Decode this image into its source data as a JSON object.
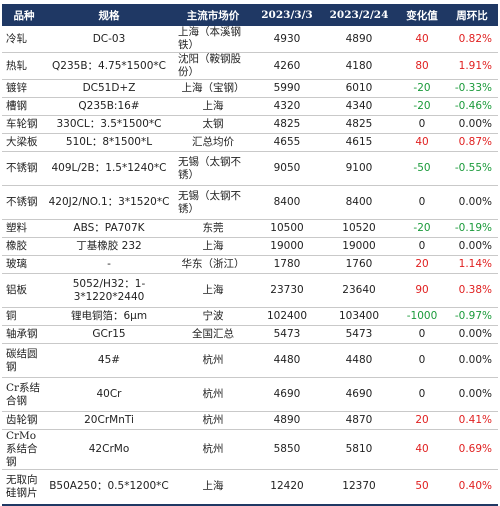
{
  "header": {
    "product": "品种",
    "spec": "规格",
    "market": "主流市场价",
    "date1": "2023/3/3",
    "date2": "2023/2/24",
    "change": "变化值",
    "wow": "周环比"
  },
  "rows": [
    {
      "product": "冷轧",
      "spec": "DC-03",
      "market": "上海（本溪钢铁）",
      "price1": "4930",
      "price2": "4890",
      "change": "40",
      "pct": "0.82%",
      "dir": "pos"
    },
    {
      "product": "热轧",
      "spec": "Q235B：4.75*1500*C",
      "market": "沈阳（鞍钢股份）",
      "price1": "4260",
      "price2": "4180",
      "change": "80",
      "pct": "1.91%",
      "dir": "pos"
    },
    {
      "product": "镀锌",
      "spec": "DC51D+Z",
      "market": "上海（宝钢）",
      "price1": "5990",
      "price2": "6010",
      "change": "-20",
      "pct": "-0.33%",
      "dir": "neg"
    },
    {
      "product": "槽钢",
      "spec": "Q235B:16#",
      "market": "上海",
      "price1": "4320",
      "price2": "4340",
      "change": "-20",
      "pct": "-0.46%",
      "dir": "neg"
    },
    {
      "product": "车轮钢",
      "spec": "330CL：3.5*1500*C",
      "market": "太钢",
      "price1": "4825",
      "price2": "4825",
      "change": "0",
      "pct": "0.00%",
      "dir": "zero"
    },
    {
      "product": "大梁板",
      "spec": "510L：8*1500*L",
      "market": "汇总均价",
      "price1": "4655",
      "price2": "4615",
      "change": "40",
      "pct": "0.87%",
      "dir": "pos"
    },
    {
      "product": "不锈钢",
      "spec": "409L/2B：1.5*1240*C",
      "market": "无锡（太钢不锈）",
      "price1": "9050",
      "price2": "9100",
      "change": "-50",
      "pct": "-0.55%",
      "dir": "neg"
    },
    {
      "product": "不锈钢",
      "spec": "420J2/NO.1：3*1520*C",
      "market": "无锡（太钢不锈）",
      "price1": "8400",
      "price2": "8400",
      "change": "0",
      "pct": "0.00%",
      "dir": "zero"
    },
    {
      "product": "塑料",
      "spec": "ABS：PA707K",
      "market": "东莞",
      "price1": "10500",
      "price2": "10520",
      "change": "-20",
      "pct": "-0.19%",
      "dir": "neg"
    },
    {
      "product": "橡胶",
      "spec": "丁基橡胶 232",
      "market": "上海",
      "price1": "19000",
      "price2": "19000",
      "change": "0",
      "pct": "0.00%",
      "dir": "zero"
    },
    {
      "product": "玻璃",
      "spec": "-",
      "market": "华东（浙江）",
      "price1": "1780",
      "price2": "1760",
      "change": "20",
      "pct": "1.14%",
      "dir": "pos"
    },
    {
      "product": "铝板",
      "spec": "5052/H32：1-3*1220*2440",
      "market": "上海",
      "price1": "23730",
      "price2": "23640",
      "change": "90",
      "pct": "0.38%",
      "dir": "pos"
    },
    {
      "product": "铜",
      "spec": "锂电铜箔：6μm",
      "market": "宁波",
      "price1": "102400",
      "price2": "103400",
      "change": "-1000",
      "pct": "-0.97%",
      "dir": "neg"
    },
    {
      "product": "轴承钢",
      "spec": "GCr15",
      "market": "全国汇总",
      "price1": "5473",
      "price2": "5473",
      "change": "0",
      "pct": "0.00%",
      "dir": "zero"
    },
    {
      "product": "碳结圆钢",
      "spec": "45#",
      "market": "杭州",
      "price1": "4480",
      "price2": "4480",
      "change": "0",
      "pct": "0.00%",
      "dir": "zero"
    },
    {
      "product": "Cr系结合钢",
      "spec": "40Cr",
      "market": "杭州",
      "price1": "4690",
      "price2": "4690",
      "change": "0",
      "pct": "0.00%",
      "dir": "zero"
    },
    {
      "product": "齿轮钢",
      "spec": "20CrMnTi",
      "market": "杭州",
      "price1": "4890",
      "price2": "4870",
      "change": "20",
      "pct": "0.41%",
      "dir": "pos"
    },
    {
      "product": "CrMo系结合钢",
      "spec": "42CrMo",
      "market": "杭州",
      "price1": "5850",
      "price2": "5810",
      "change": "40",
      "pct": "0.69%",
      "dir": "pos"
    },
    {
      "product": "无取向硅钢片",
      "spec": "B50A250：0.5*1200*C",
      "market": "上海",
      "price1": "12420",
      "price2": "12370",
      "change": "50",
      "pct": "0.40%",
      "dir": "pos"
    }
  ]
}
